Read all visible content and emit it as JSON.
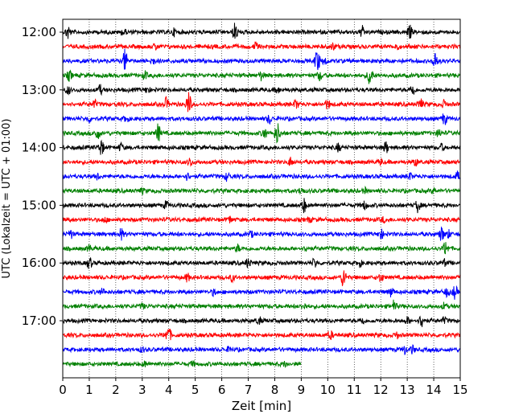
{
  "chart_data": {
    "type": "line",
    "title": "",
    "xlabel": "Zeit  [min]",
    "ylabel": "UTC (Lokalzeit = UTC + 01:00)",
    "xlim": [
      0,
      15
    ],
    "x_ticks": [
      "0",
      "1",
      "2",
      "3",
      "4",
      "5",
      "6",
      "7",
      "8",
      "9",
      "10",
      "11",
      "12",
      "13",
      "14",
      "15"
    ],
    "y_ticks": [
      "12:00",
      "13:00",
      "14:00",
      "15:00",
      "16:00",
      "17:00"
    ],
    "grid": "vertical dotted",
    "trace_colors": [
      "#000000",
      "#ff0000",
      "#0000ff",
      "#008000"
    ],
    "traces": [
      {
        "start": "12:00",
        "end_min": 15,
        "spikes": [
          [
            0.2,
            10
          ],
          [
            2.3,
            5
          ],
          [
            4.2,
            5
          ],
          [
            6.5,
            12
          ],
          [
            11.3,
            8
          ],
          [
            13.1,
            9
          ]
        ]
      },
      {
        "start": "12:15",
        "end_min": 15,
        "spikes": [
          [
            3.5,
            5
          ],
          [
            7.3,
            6
          ],
          [
            10.2,
            5
          ],
          [
            12.6,
            5
          ]
        ]
      },
      {
        "start": "12:30",
        "end_min": 15,
        "spikes": [
          [
            2.35,
            15
          ],
          [
            9.6,
            16
          ],
          [
            14.05,
            14
          ],
          [
            9.9,
            6
          ],
          [
            3.4,
            5
          ]
        ]
      },
      {
        "start": "12:45",
        "end_min": 15,
        "spikes": [
          [
            0.25,
            7
          ],
          [
            3.1,
            6
          ],
          [
            7.5,
            7
          ],
          [
            9.7,
            7
          ],
          [
            11.6,
            15
          ]
        ]
      },
      {
        "start": "13:00",
        "end_min": 15,
        "spikes": [
          [
            0.2,
            6
          ],
          [
            1.4,
            7
          ],
          [
            3.2,
            5
          ],
          [
            13.2,
            9
          ],
          [
            8.1,
            5
          ]
        ]
      },
      {
        "start": "13:15",
        "end_min": 15,
        "spikes": [
          [
            1.2,
            6
          ],
          [
            3.9,
            8
          ],
          [
            4.75,
            16
          ],
          [
            8.8,
            6
          ],
          [
            10.0,
            7
          ],
          [
            13.5,
            8
          ],
          [
            14.4,
            6
          ]
        ]
      },
      {
        "start": "13:30",
        "end_min": 15,
        "spikes": [
          [
            1.0,
            5
          ],
          [
            2.4,
            5
          ],
          [
            7.8,
            7
          ],
          [
            14.4,
            9
          ]
        ]
      },
      {
        "start": "13:45",
        "end_min": 15,
        "spikes": [
          [
            1.3,
            9
          ],
          [
            3.6,
            12
          ],
          [
            7.6,
            8
          ],
          [
            8.1,
            15
          ],
          [
            14.2,
            6
          ]
        ]
      },
      {
        "start": "14:00",
        "end_min": 15,
        "spikes": [
          [
            1.45,
            11
          ],
          [
            2.2,
            6
          ],
          [
            10.4,
            6
          ],
          [
            12.2,
            8
          ],
          [
            14.3,
            5
          ]
        ]
      },
      {
        "start": "14:15",
        "end_min": 15,
        "spikes": [
          [
            4.8,
            6
          ],
          [
            8.6,
            6
          ],
          [
            13.3,
            6
          ],
          [
            12.0,
            5
          ]
        ]
      },
      {
        "start": "14:30",
        "end_min": 15,
        "spikes": [
          [
            1.3,
            5
          ],
          [
            4.7,
            5
          ],
          [
            6.2,
            6
          ],
          [
            13.1,
            5
          ],
          [
            14.9,
            6
          ]
        ]
      },
      {
        "start": "14:45",
        "end_min": 15,
        "spikes": [
          [
            3.0,
            4
          ],
          [
            9.0,
            5
          ],
          [
            11.4,
            4
          ],
          [
            14.0,
            4
          ]
        ]
      },
      {
        "start": "15:00",
        "end_min": 15,
        "spikes": [
          [
            3.9,
            6
          ],
          [
            9.1,
            10
          ],
          [
            11.4,
            6
          ],
          [
            13.4,
            9
          ]
        ]
      },
      {
        "start": "15:15",
        "end_min": 15,
        "spikes": [
          [
            1.6,
            4
          ],
          [
            6.3,
            5
          ],
          [
            9.3,
            4
          ],
          [
            12.1,
            4
          ]
        ]
      },
      {
        "start": "15:30",
        "end_min": 15,
        "spikes": [
          [
            0.3,
            6
          ],
          [
            2.2,
            8
          ],
          [
            7.1,
            5
          ],
          [
            12.0,
            7
          ],
          [
            14.3,
            10
          ],
          [
            14.55,
            6
          ]
        ]
      },
      {
        "start": "15:45",
        "end_min": 15,
        "spikes": [
          [
            1.0,
            5
          ],
          [
            6.6,
            5
          ],
          [
            9.2,
            4
          ],
          [
            14.45,
            10
          ]
        ]
      },
      {
        "start": "16:00",
        "end_min": 15,
        "spikes": [
          [
            1.0,
            8
          ],
          [
            7.0,
            7
          ],
          [
            9.5,
            7
          ],
          [
            11.2,
            5
          ],
          [
            14.4,
            5
          ]
        ]
      },
      {
        "start": "16:15",
        "end_min": 15,
        "spikes": [
          [
            4.7,
            6
          ],
          [
            6.4,
            5
          ],
          [
            10.6,
            14
          ],
          [
            12.0,
            6
          ]
        ]
      },
      {
        "start": "16:30",
        "end_min": 15,
        "spikes": [
          [
            1.5,
            5
          ],
          [
            5.7,
            5
          ],
          [
            12.4,
            7
          ],
          [
            14.8,
            9
          ],
          [
            14.5,
            6
          ]
        ]
      },
      {
        "start": "16:45",
        "end_min": 15,
        "spikes": [
          [
            3.0,
            4
          ],
          [
            9.1,
            5
          ],
          [
            12.5,
            8
          ],
          [
            14.4,
            5
          ]
        ]
      },
      {
        "start": "17:00",
        "end_min": 15,
        "spikes": [
          [
            7.4,
            6
          ],
          [
            11.3,
            6
          ],
          [
            13.0,
            5
          ],
          [
            13.55,
            10
          ],
          [
            14.4,
            5
          ]
        ]
      },
      {
        "start": "17:15",
        "end_min": 15,
        "spikes": [
          [
            4.0,
            10
          ],
          [
            3.9,
            6
          ],
          [
            10.1,
            6
          ],
          [
            12.6,
            5
          ]
        ]
      },
      {
        "start": "17:30",
        "end_min": 15,
        "spikes": [
          [
            3.0,
            4
          ],
          [
            6.3,
            5
          ],
          [
            12.9,
            6
          ],
          [
            13.2,
            6
          ]
        ]
      },
      {
        "start": "17:45",
        "end_min": 9,
        "spikes": [
          [
            3.1,
            4
          ],
          [
            4.9,
            4
          ],
          [
            8.4,
            4
          ]
        ]
      }
    ]
  }
}
